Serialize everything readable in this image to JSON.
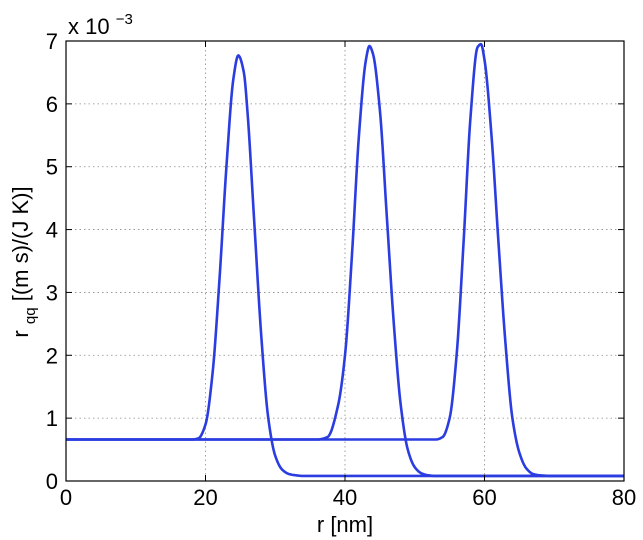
{
  "chart_data": {
    "type": "line",
    "title": "",
    "xlabel": "r  [nm]",
    "ylabel": {
      "main": "r",
      "sub": "qq",
      "units": "  [(m s)/(J K)]"
    },
    "y_multiplier": {
      "prefix": "x 10",
      "exponent": "−3"
    },
    "xlim": [
      0,
      80
    ],
    "ylim": [
      0,
      7
    ],
    "x_ticks": [
      0,
      20,
      40,
      60,
      80
    ],
    "y_ticks": [
      0,
      1,
      2,
      3,
      4,
      5,
      6,
      7
    ],
    "grid": true,
    "grid_style": "dotted",
    "legend": "none",
    "line_color": "#2b3de0",
    "series": [
      {
        "x": [
          0,
          18,
          19,
          20,
          21,
          22,
          23,
          24,
          24.7,
          25.5,
          26,
          27,
          28,
          29,
          30,
          31,
          32,
          33,
          34,
          35,
          40,
          50,
          60,
          70,
          80
        ],
        "values": [
          0.66,
          0.66,
          0.68,
          0.9,
          1.7,
          3.2,
          5.0,
          6.4,
          6.77,
          6.5,
          5.9,
          4.1,
          2.3,
          1.0,
          0.4,
          0.18,
          0.11,
          0.09,
          0.08,
          0.08,
          0.08,
          0.08,
          0.08,
          0.08,
          0.08
        ]
      },
      {
        "x": [
          0,
          36,
          37.5,
          39,
          40,
          41,
          42,
          43,
          43.5,
          44,
          45,
          46,
          47,
          48,
          49,
          50,
          51,
          52,
          53,
          55,
          60,
          70,
          80
        ],
        "values": [
          0.66,
          0.66,
          0.7,
          1.2,
          2.0,
          3.6,
          5.5,
          6.7,
          6.92,
          6.8,
          5.9,
          4.2,
          2.5,
          1.2,
          0.5,
          0.22,
          0.12,
          0.09,
          0.08,
          0.08,
          0.08,
          0.08,
          0.08
        ]
      },
      {
        "x": [
          0,
          50,
          53,
          54,
          55,
          56,
          57,
          58,
          59,
          59.5,
          60,
          61,
          62,
          63,
          64,
          65,
          66,
          67,
          68,
          70,
          80
        ],
        "values": [
          0.66,
          0.66,
          0.66,
          0.7,
          1.0,
          2.0,
          3.8,
          5.8,
          6.9,
          6.95,
          6.7,
          5.5,
          3.8,
          2.2,
          1.0,
          0.45,
          0.2,
          0.11,
          0.09,
          0.08,
          0.08
        ]
      }
    ]
  }
}
